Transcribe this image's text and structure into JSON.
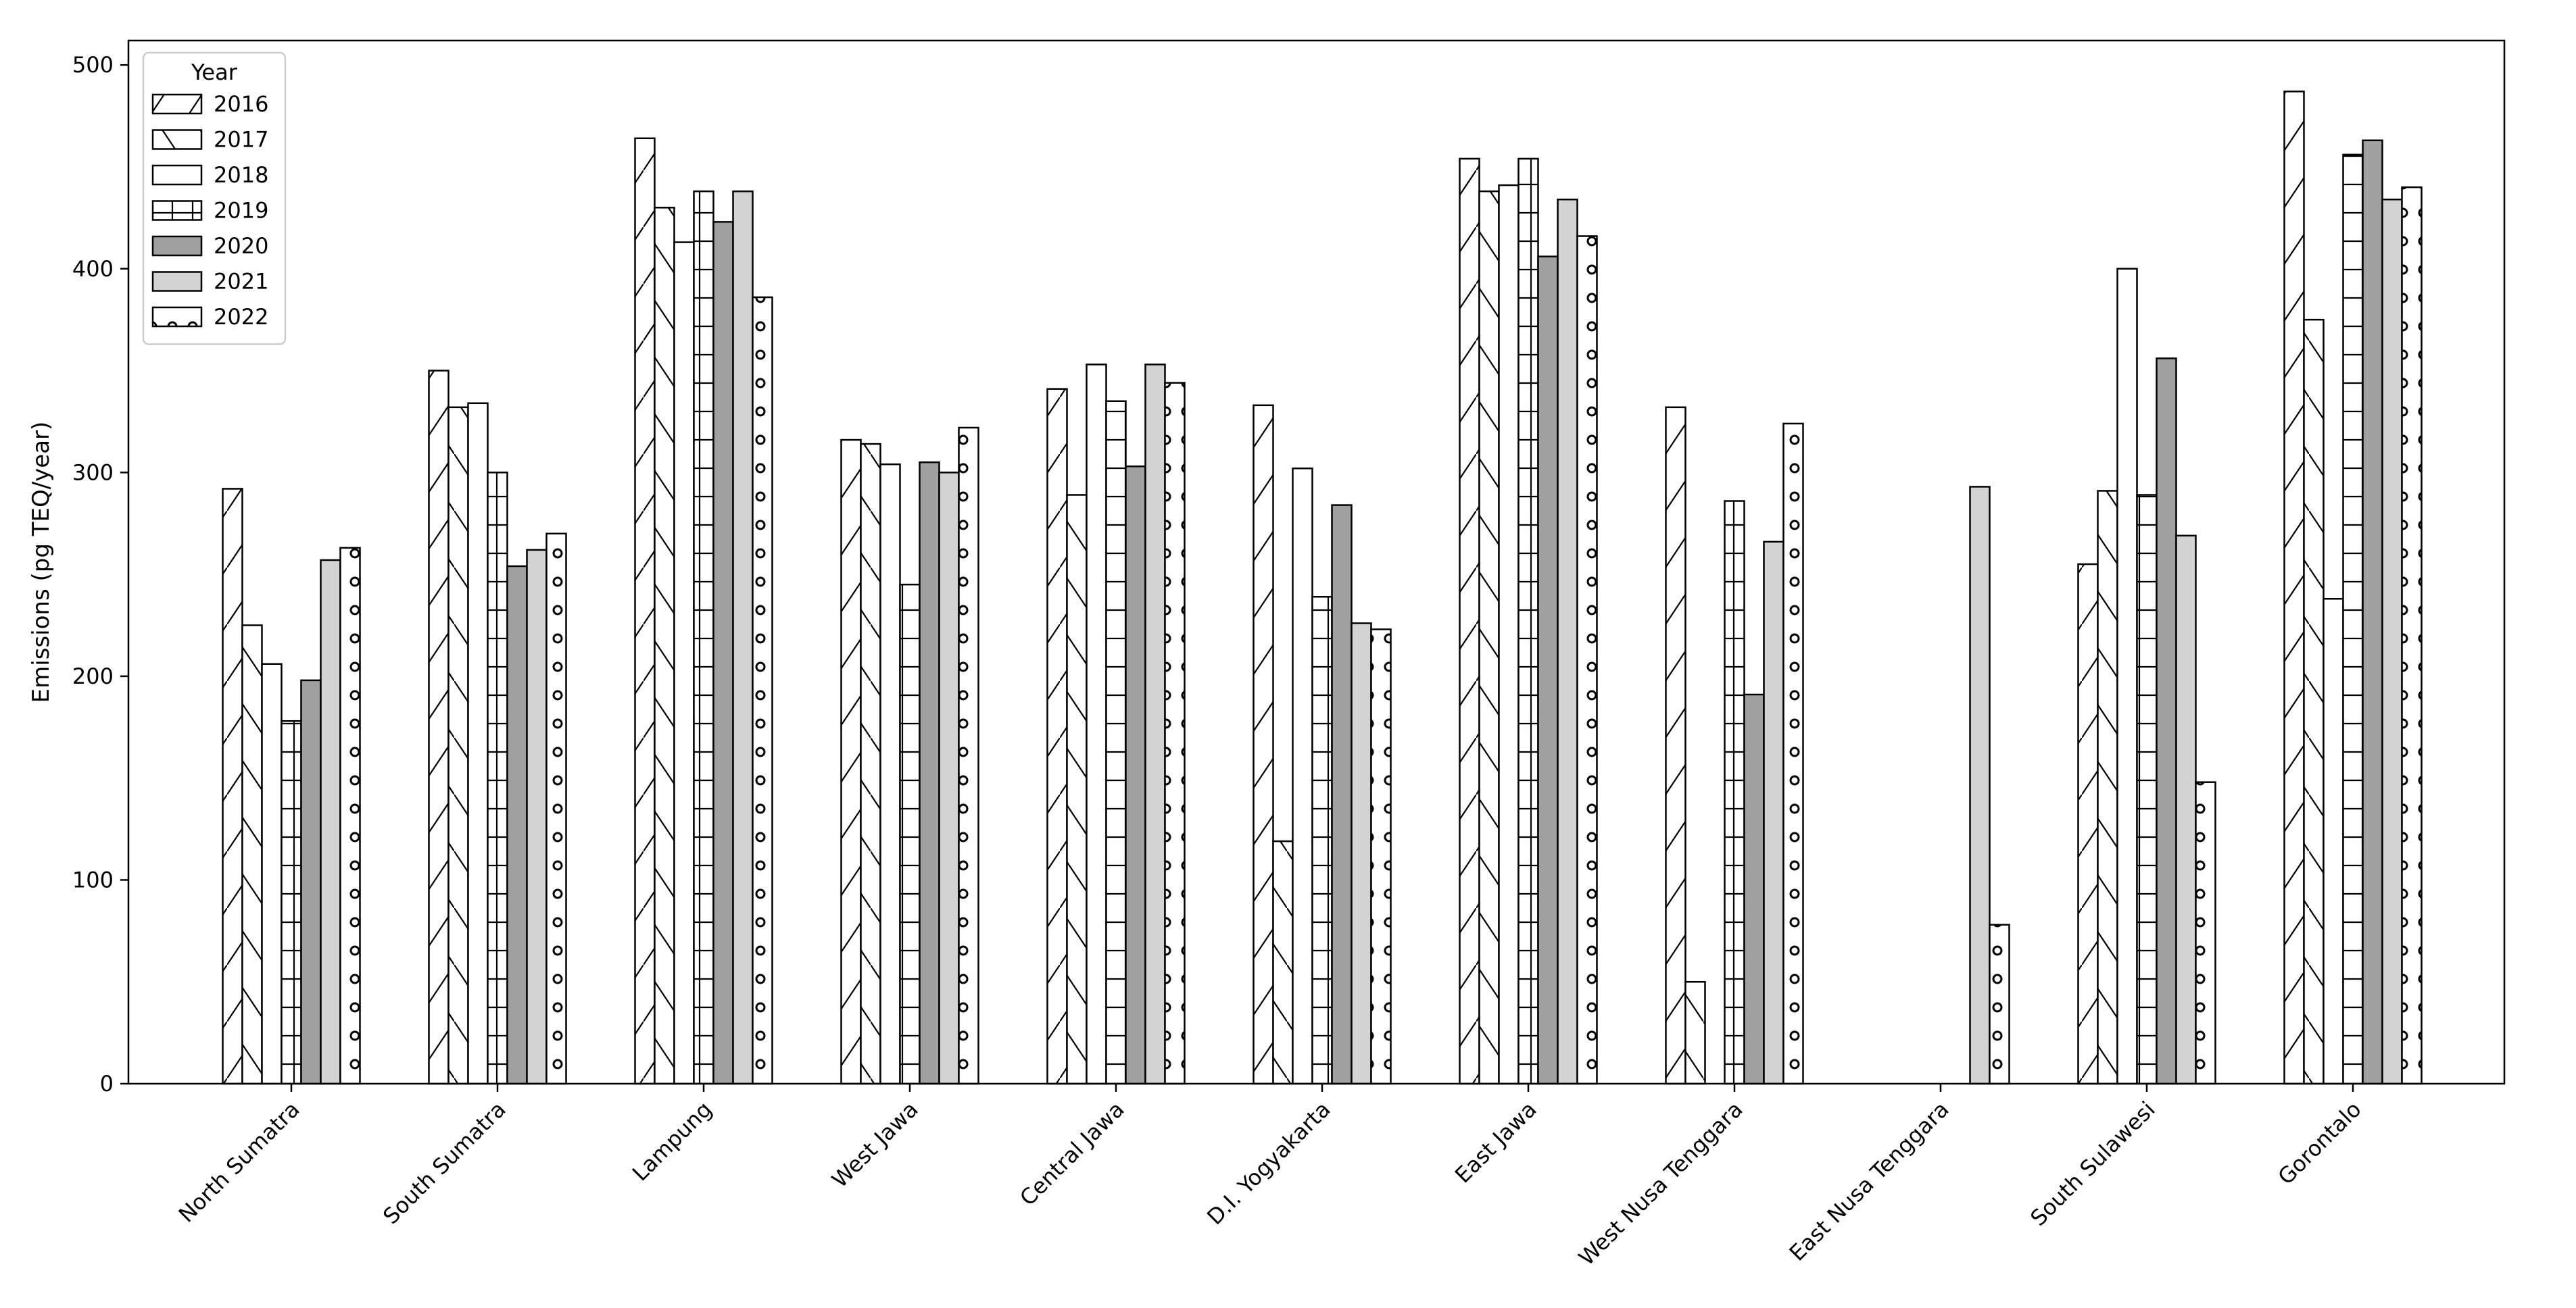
{
  "chart_data": {
    "type": "bar",
    "title": "",
    "xlabel": "",
    "ylabel": "Emissions (pg TEQ/year)",
    "ylim": [
      0,
      512
    ],
    "yticks": [
      0,
      100,
      200,
      300,
      400,
      500
    ],
    "grid": false,
    "legend": {
      "title": "Year",
      "position": "top-left"
    },
    "categories": [
      "North Sumatra",
      "South Sumatra",
      "Lampung",
      "West Jawa",
      "Central Jawa",
      "D.I. Yogyakarta",
      "East Jawa",
      "West Nusa Tenggara",
      "East Nusa Tenggara",
      "South Sulawesi",
      "Gorontalo"
    ],
    "series": [
      {
        "name": "2016",
        "fill": "#ffffff",
        "hatch": "forward-slash",
        "values": [
          292,
          350,
          464,
          316,
          341,
          333,
          454,
          332,
          0,
          255,
          487
        ]
      },
      {
        "name": "2017",
        "fill": "#ffffff",
        "hatch": "back-slash",
        "values": [
          225,
          332,
          430,
          314,
          289,
          119,
          438,
          50,
          0,
          291,
          375
        ]
      },
      {
        "name": "2018",
        "fill": "#ffffff",
        "hatch": "none",
        "values": [
          206,
          334,
          413,
          304,
          353,
          302,
          441,
          0,
          0,
          400,
          238
        ]
      },
      {
        "name": "2019",
        "fill": "#ffffff",
        "hatch": "plus",
        "values": [
          178,
          300,
          438,
          245,
          335,
          239,
          454,
          286,
          0,
          289,
          456
        ]
      },
      {
        "name": "2020",
        "fill": "#a0a0a0",
        "hatch": "none",
        "values": [
          198,
          254,
          423,
          305,
          303,
          284,
          406,
          191,
          0,
          356,
          463
        ]
      },
      {
        "name": "2021",
        "fill": "#d3d3d3",
        "hatch": "none",
        "values": [
          257,
          262,
          438,
          300,
          353,
          226,
          434,
          266,
          293,
          269,
          434
        ]
      },
      {
        "name": "2022",
        "fill": "#ffffff",
        "hatch": "circles",
        "values": [
          263,
          270,
          386,
          322,
          344,
          223,
          416,
          324,
          78,
          148,
          440
        ]
      }
    ]
  }
}
